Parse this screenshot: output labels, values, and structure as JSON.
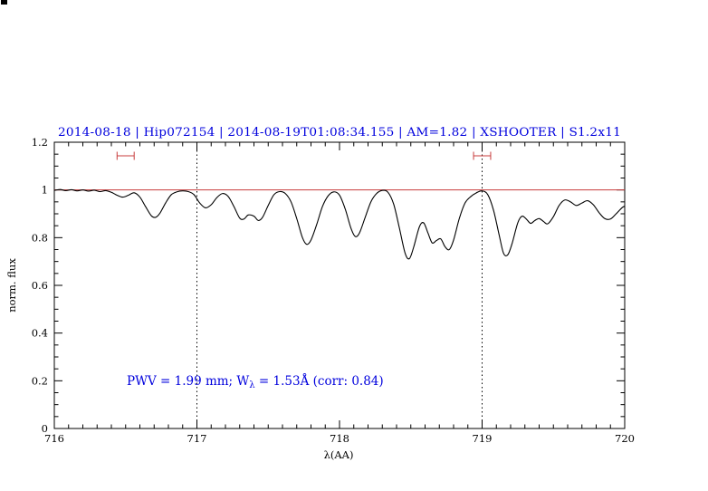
{
  "chart_data": {
    "type": "line",
    "title": "2014-08-18 | Hip072154 | 2014-08-19T01:08:34.155 | AM=1.82 | XSHOOTER | S1.2x11",
    "xlabel": "λ(AA)",
    "ylabel": "norm. flux",
    "xlim": [
      716,
      720
    ],
    "ylim": [
      0,
      1.2
    ],
    "x_major_ticks": [
      716,
      717,
      718,
      719,
      720
    ],
    "x_tick_labels": [
      "716",
      "717",
      "718",
      "719",
      "720"
    ],
    "x_minor_per_major": 10,
    "y_major_ticks": [
      0,
      0.2,
      0.4,
      0.6,
      0.8,
      1,
      1.2
    ],
    "y_tick_labels": [
      "0",
      "0.2",
      "0.4",
      "0.6",
      "0.8",
      "1",
      "1.2"
    ],
    "y_minor_step": 0.05,
    "grid": "off",
    "legend": "none",
    "vertical_dotted_lines_x": [
      717,
      719
    ],
    "reference_hline_y": 1.0,
    "interval_markers": [
      {
        "x_center": 716.5,
        "x_halfwidth": 0.06,
        "y": 1.143
      },
      {
        "x_center": 719.0,
        "x_halfwidth": 0.06,
        "y": 1.143
      }
    ],
    "annotation": {
      "prefix": "PWV = 1.99 mm; W",
      "sub": "λ",
      "suffix": " = 1.53Å (corr: 0.84)"
    },
    "series": [
      {
        "name": "normalized-telluric-spectrum",
        "points": [
          [
            716.0,
            0.998
          ],
          [
            716.04,
            1.002
          ],
          [
            716.08,
            0.997
          ],
          [
            716.12,
            1.001
          ],
          [
            716.16,
            0.996
          ],
          [
            716.2,
            1.0
          ],
          [
            716.24,
            0.995
          ],
          [
            716.28,
            0.999
          ],
          [
            716.32,
            0.993
          ],
          [
            716.36,
            0.997
          ],
          [
            716.4,
            0.99
          ],
          [
            716.44,
            0.978
          ],
          [
            716.48,
            0.97
          ],
          [
            716.52,
            0.978
          ],
          [
            716.56,
            0.988
          ],
          [
            716.6,
            0.97
          ],
          [
            716.64,
            0.93
          ],
          [
            716.68,
            0.892
          ],
          [
            716.71,
            0.885
          ],
          [
            716.74,
            0.902
          ],
          [
            716.78,
            0.945
          ],
          [
            716.82,
            0.98
          ],
          [
            716.86,
            0.992
          ],
          [
            716.9,
            0.996
          ],
          [
            716.94,
            0.993
          ],
          [
            716.98,
            0.98
          ],
          [
            717.02,
            0.945
          ],
          [
            717.06,
            0.925
          ],
          [
            717.1,
            0.938
          ],
          [
            717.14,
            0.968
          ],
          [
            717.18,
            0.985
          ],
          [
            717.22,
            0.972
          ],
          [
            717.26,
            0.93
          ],
          [
            717.3,
            0.882
          ],
          [
            717.33,
            0.878
          ],
          [
            717.36,
            0.895
          ],
          [
            717.4,
            0.89
          ],
          [
            717.43,
            0.872
          ],
          [
            717.46,
            0.885
          ],
          [
            717.5,
            0.935
          ],
          [
            717.54,
            0.98
          ],
          [
            717.58,
            0.993
          ],
          [
            717.62,
            0.985
          ],
          [
            717.66,
            0.95
          ],
          [
            717.7,
            0.88
          ],
          [
            717.74,
            0.8
          ],
          [
            717.77,
            0.772
          ],
          [
            717.8,
            0.79
          ],
          [
            717.84,
            0.855
          ],
          [
            717.88,
            0.93
          ],
          [
            717.92,
            0.975
          ],
          [
            717.96,
            0.992
          ],
          [
            718.0,
            0.978
          ],
          [
            718.04,
            0.92
          ],
          [
            718.08,
            0.84
          ],
          [
            718.11,
            0.805
          ],
          [
            718.14,
            0.82
          ],
          [
            718.18,
            0.885
          ],
          [
            718.22,
            0.95
          ],
          [
            718.26,
            0.985
          ],
          [
            718.3,
            0.998
          ],
          [
            718.34,
            0.99
          ],
          [
            718.38,
            0.94
          ],
          [
            718.42,
            0.84
          ],
          [
            718.46,
            0.735
          ],
          [
            718.49,
            0.712
          ],
          [
            718.52,
            0.76
          ],
          [
            718.56,
            0.845
          ],
          [
            718.59,
            0.862
          ],
          [
            718.62,
            0.82
          ],
          [
            718.65,
            0.778
          ],
          [
            718.68,
            0.788
          ],
          [
            718.71,
            0.795
          ],
          [
            718.74,
            0.762
          ],
          [
            718.77,
            0.75
          ],
          [
            718.8,
            0.79
          ],
          [
            718.84,
            0.88
          ],
          [
            718.88,
            0.945
          ],
          [
            718.92,
            0.972
          ],
          [
            718.96,
            0.988
          ],
          [
            719.0,
            0.996
          ],
          [
            719.04,
            0.98
          ],
          [
            719.08,
            0.915
          ],
          [
            719.12,
            0.81
          ],
          [
            719.15,
            0.735
          ],
          [
            719.18,
            0.728
          ],
          [
            719.21,
            0.775
          ],
          [
            719.25,
            0.862
          ],
          [
            719.28,
            0.89
          ],
          [
            719.31,
            0.878
          ],
          [
            719.34,
            0.86
          ],
          [
            719.37,
            0.872
          ],
          [
            719.4,
            0.88
          ],
          [
            719.43,
            0.868
          ],
          [
            719.46,
            0.858
          ],
          [
            719.5,
            0.888
          ],
          [
            719.54,
            0.935
          ],
          [
            719.58,
            0.958
          ],
          [
            719.62,
            0.95
          ],
          [
            719.66,
            0.935
          ],
          [
            719.7,
            0.945
          ],
          [
            719.74,
            0.955
          ],
          [
            719.78,
            0.938
          ],
          [
            719.82,
            0.905
          ],
          [
            719.86,
            0.88
          ],
          [
            719.9,
            0.878
          ],
          [
            719.94,
            0.9
          ],
          [
            719.98,
            0.925
          ],
          [
            720.0,
            0.932
          ]
        ]
      }
    ]
  },
  "colors": {
    "title_text": "#0000dd",
    "annotation_text": "#0000dd",
    "spectrum_line": "#000000",
    "reference_line": "#c83c3c",
    "interval_marker": "#c83c3c",
    "axis": "#000000",
    "dotted_guide": "#000000",
    "background": "#ffffff"
  }
}
